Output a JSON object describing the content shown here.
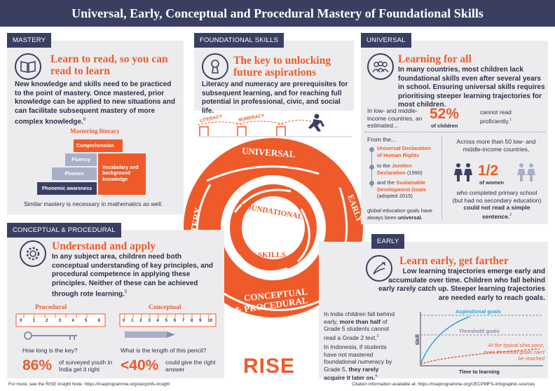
{
  "header": {
    "title": "Universal, Early, Conceptual and Procedural Mastery of Foundational Skills"
  },
  "mastery": {
    "tag": "MASTERY",
    "icon": "book-icon",
    "title": "Learn to read, so you can read to learn",
    "body": "New knowledge and skills need to be practiced to the point of mastery. Once mastered, prior knowledge can be applied to new situations and can facilitate subsequent mastery of more complex knowledge.",
    "note": "6",
    "chart_title": "Mastering literacy",
    "steps": [
      "Comprehension",
      "Fluency",
      "Phonics",
      "Phonemic awareness"
    ],
    "side_label": "Vocabulary and background knowledge",
    "caption": "Similar mastery is necessary in mathematics as well."
  },
  "foundational": {
    "tag": "FOUNDATIONAL SKILLS",
    "icon": "keyhole-icon",
    "title": "The key to unlocking future aspirations",
    "body": "Literacy and numeracy are prerequisites for subsequent learning, and for reaching full potential in professional, civic, and social life.",
    "hurdles": [
      "LITERACY",
      "NUMERACY"
    ]
  },
  "universal": {
    "tag": "UNIVERSAL",
    "icon": "people-icon",
    "title": "Learning for all",
    "body": "In many countries, most children lack foundational skills even after several years in school. Ensuring universal skills requires prioritising steeper learning trajectories for most children.",
    "stat1_left": "In low- and middle-income countries, an estimated...",
    "stat1_value": "52%",
    "stat1_sub": "of children",
    "stat1_right": "cannot read proficiently.",
    "stat1_note": "1",
    "from": "From the...",
    "list": [
      {
        "bold": "Universal Declaration of Human Rights",
        "rest": ""
      },
      {
        "pre": "to the ",
        "bold": "Jomtien Declaration",
        "rest": " (1990)"
      },
      {
        "pre": "and the ",
        "bold": "Sustainable Development Goals",
        "rest": " (adopted 2015)"
      }
    ],
    "list_tail_pre": "global education goals have always been ",
    "list_tail_bold": "universal.",
    "across": "Across more than 50 low- and middle-income countries,",
    "women_value": "1/2",
    "women_sub": "of women",
    "women_pre": "who completed primary school (but had no secondary education) ",
    "women_bold": "could not read a simple sentence.",
    "women_note": "2"
  },
  "circle": {
    "universal": "UNIVERSAL",
    "early": "EARLY",
    "conceptual": "CONCEPTUAL",
    "procedural": "& PROCEDURAL",
    "mastery": "MASTERY",
    "foundational": "FOUNDATIONAL",
    "skills": "SKILLS"
  },
  "conceptual": {
    "tag": "CONCEPTUAL & PROCEDURAL",
    "icon": "gear-icon",
    "title": "Understand and apply",
    "body": "In any subject area, children need both conceptual understanding of key principles, and procedural competence in applying these principles. Neither of these can be achieved through rote learning.",
    "note": "5",
    "proc_label": "Procedural",
    "conc_label": "Conceptual",
    "ruler_ticks": [
      "0",
      "1",
      "2",
      "3",
      "4",
      "5",
      "6"
    ],
    "ruler2_ticks": [
      "0",
      "1",
      "2",
      "3",
      "4",
      "5",
      "6",
      "7",
      "8",
      "9",
      "10"
    ],
    "q1": "How long is the key?",
    "q2": "What is the length of this pencil?",
    "s1_value": "86%",
    "s1_text": "of surveyed youth in India get it right",
    "s2_value": "<40%",
    "s2_text": "could give the right answer"
  },
  "early": {
    "tag": "EARLY",
    "icon": "rocket-icon",
    "title": "Learn early, get farther",
    "body": "Low learning trajectories emerge early and accumulate over time. Children who fall behind early rarely catch up. Steeper learning trajectories are needed early to reach goals.",
    "india_pre": "In India children fall behind early, ",
    "india_bold": "more than half",
    "india_rest": " of Grade 5 students cannot read a Grade 2 text.",
    "india_note": "3",
    "indo_pre": "In Indonesia, if students have not mastered foundational numeracy by Grade 5, ",
    "indo_bold": "they rarely acquire it later on.",
    "indo_note": "4",
    "graph_aspirational": "Aspirational goals",
    "graph_threshold": "Threshold goals",
    "graph_slow": "At the typical slow pace, even threshold goals can't be reached",
    "graph_y": "Skill",
    "graph_x": "Time to learning"
  },
  "logo": "RISE",
  "footer_left": "For more, see the RISE Insight Note: https://riseprogramme.org/uecpmfs-insight",
  "footer_right": "Citation information available at: https://riseprogramme.org/UECPMFS-infographic-sources",
  "colors": {
    "accent": "#ef5a2a",
    "navy": "#3a3f62",
    "panel": "#ececee"
  }
}
